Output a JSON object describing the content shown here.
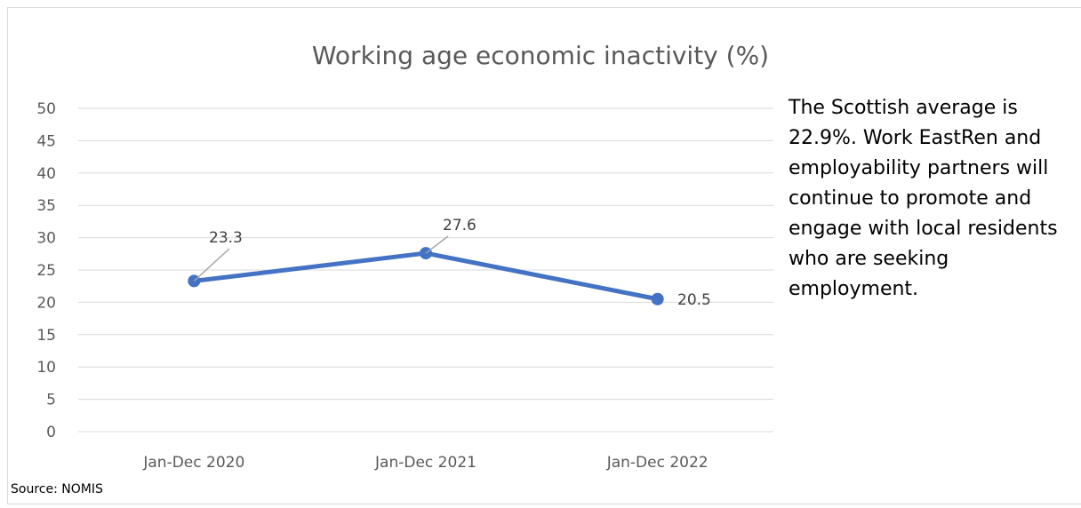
{
  "chart_data": {
    "type": "line",
    "title": "Working age economic inactivity (%)",
    "categories": [
      "Jan-Dec 2020",
      "Jan-Dec 2021",
      "Jan-Dec  2022"
    ],
    "series": [
      {
        "values": [
          23.3,
          27.6,
          20.5
        ],
        "data_labels": [
          "23.3",
          "27.6",
          "20.5"
        ]
      }
    ],
    "ylim": [
      0,
      50
    ],
    "yticks": [
      0,
      5,
      10,
      15,
      20,
      25,
      30,
      35,
      40,
      45,
      50
    ],
    "grid": true,
    "line_color": "#4472c4",
    "text_color": "#595959",
    "grid_color": "#d9d9d9"
  },
  "note": "The Scottish average is 22.9%.  Work EastRen and employability partners will continue to promote and engage with local residents who are seeking employment.",
  "source": "Source: NOMIS"
}
